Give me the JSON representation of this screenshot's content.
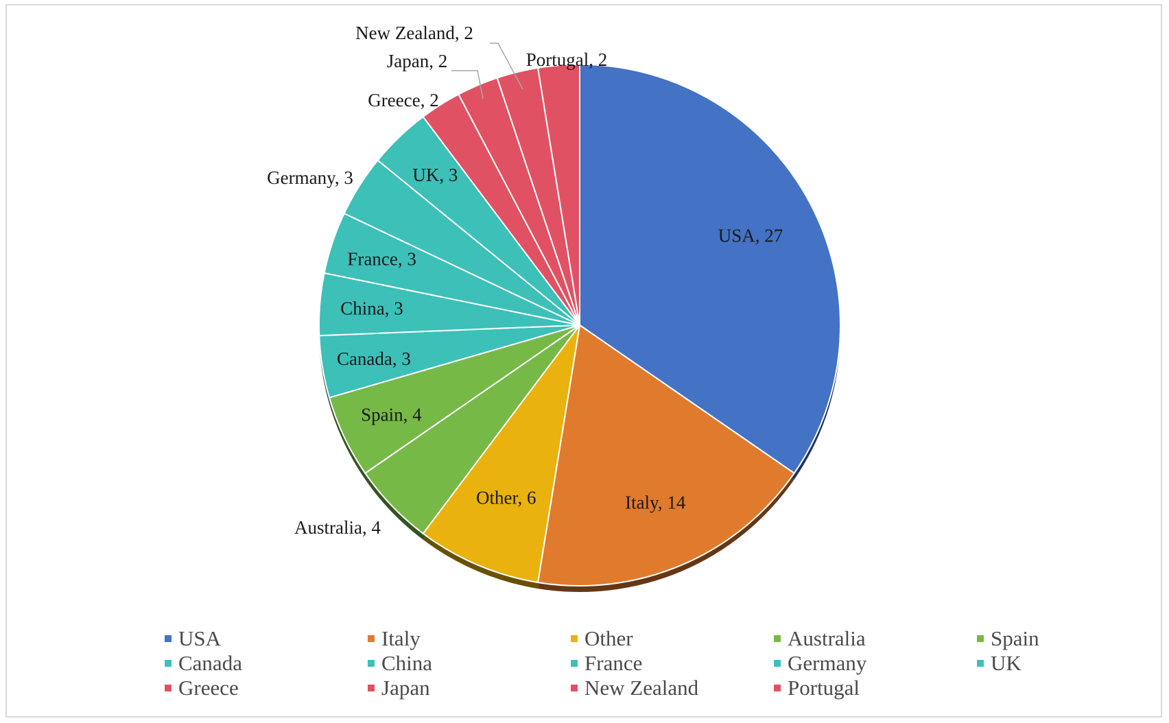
{
  "chart_data": {
    "type": "pie",
    "title": "",
    "categories": [
      "USA",
      "Italy",
      "Other",
      "Australia",
      "Spain",
      "Canada",
      "China",
      "France",
      "Germany",
      "UK",
      "Greece",
      "Japan",
      "New Zealand",
      "Portugal"
    ],
    "values": [
      27,
      14,
      6,
      4,
      4,
      3,
      3,
      3,
      3,
      3,
      2,
      2,
      2,
      2
    ],
    "data_labels": [
      "USA, 27",
      "Italy, 14",
      "Other, 6",
      "Australia, 4",
      "Spain, 4",
      "Canada, 3",
      "China, 3",
      "France, 3",
      "Germany, 3",
      "UK, 3",
      "Greece, 2",
      "Japan, 2",
      "New Zealand, 2",
      "Portugal, 2"
    ],
    "colors": [
      "#4472C4",
      "#E07B2E",
      "#E9B20E",
      "#76B947",
      "#76B947",
      "#3CC0B8",
      "#3CC0B8",
      "#3CC0B8",
      "#3CC0B8",
      "#3CC0B8",
      "#E05263",
      "#E05263",
      "#E05263",
      "#E05263"
    ],
    "start_angle": "12 o'clock",
    "direction": "clockwise",
    "legend_position": "bottom"
  }
}
